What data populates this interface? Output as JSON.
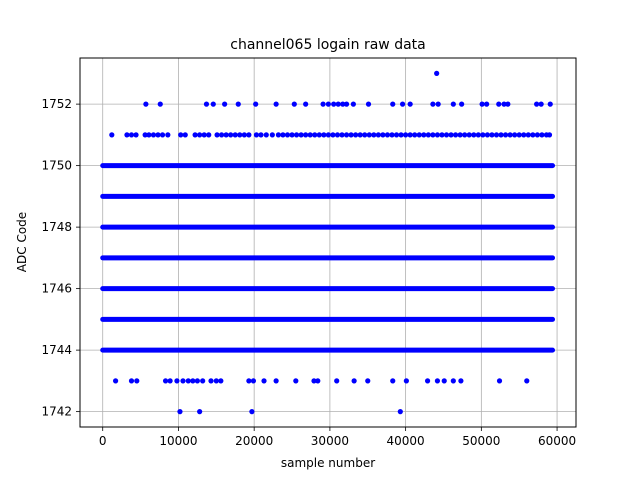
{
  "chart_data": {
    "type": "scatter",
    "title": "channel065 logain raw data",
    "xlabel": "sample number",
    "ylabel": "ADC Code",
    "xlim": [
      -3000,
      62500
    ],
    "ylim": [
      1741.5,
      1753.5
    ],
    "xticks": [
      0,
      10000,
      20000,
      30000,
      40000,
      50000,
      60000
    ],
    "yticks": [
      1742,
      1744,
      1746,
      1748,
      1750,
      1752
    ],
    "grid": true,
    "marker_color": "#0000ff",
    "dense_levels": {
      "y": [
        1744,
        1745,
        1746,
        1747,
        1748,
        1749,
        1750
      ],
      "x_range": [
        0,
        59400
      ]
    },
    "sparse_points": [
      {
        "x": 1200,
        "y": 1751
      },
      {
        "x": 3200,
        "y": 1751
      },
      {
        "x": 3800,
        "y": 1751
      },
      {
        "x": 4400,
        "y": 1751
      },
      {
        "x": 5600,
        "y": 1751
      },
      {
        "x": 6100,
        "y": 1751
      },
      {
        "x": 6700,
        "y": 1751
      },
      {
        "x": 7300,
        "y": 1751
      },
      {
        "x": 7900,
        "y": 1751
      },
      {
        "x": 8600,
        "y": 1751
      },
      {
        "x": 10300,
        "y": 1751
      },
      {
        "x": 10900,
        "y": 1751
      },
      {
        "x": 12200,
        "y": 1751
      },
      {
        "x": 12800,
        "y": 1751
      },
      {
        "x": 13400,
        "y": 1751
      },
      {
        "x": 14000,
        "y": 1751
      },
      {
        "x": 15100,
        "y": 1751
      },
      {
        "x": 15700,
        "y": 1751
      },
      {
        "x": 16300,
        "y": 1751
      },
      {
        "x": 16900,
        "y": 1751
      },
      {
        "x": 17500,
        "y": 1751
      },
      {
        "x": 18100,
        "y": 1751
      },
      {
        "x": 18700,
        "y": 1751
      },
      {
        "x": 19300,
        "y": 1751
      },
      {
        "x": 20300,
        "y": 1751
      },
      {
        "x": 20900,
        "y": 1751
      },
      {
        "x": 21600,
        "y": 1751
      },
      {
        "x": 22400,
        "y": 1751
      },
      {
        "x": 23200,
        "y": 1751
      },
      {
        "x": 23800,
        "y": 1751
      },
      {
        "x": 24400,
        "y": 1751
      },
      {
        "x": 25000,
        "y": 1751
      },
      {
        "x": 25600,
        "y": 1751
      },
      {
        "x": 26200,
        "y": 1751
      },
      {
        "x": 26800,
        "y": 1751
      },
      {
        "x": 27400,
        "y": 1751
      },
      {
        "x": 28000,
        "y": 1751
      },
      {
        "x": 28600,
        "y": 1751
      },
      {
        "x": 29200,
        "y": 1751
      },
      {
        "x": 29800,
        "y": 1751
      },
      {
        "x": 30400,
        "y": 1751
      },
      {
        "x": 31000,
        "y": 1751
      },
      {
        "x": 31600,
        "y": 1751
      },
      {
        "x": 32200,
        "y": 1751
      },
      {
        "x": 32800,
        "y": 1751
      },
      {
        "x": 33400,
        "y": 1751
      },
      {
        "x": 34000,
        "y": 1751
      },
      {
        "x": 34600,
        "y": 1751
      },
      {
        "x": 35200,
        "y": 1751
      },
      {
        "x": 35800,
        "y": 1751
      },
      {
        "x": 36400,
        "y": 1751
      },
      {
        "x": 37000,
        "y": 1751
      },
      {
        "x": 37600,
        "y": 1751
      },
      {
        "x": 38200,
        "y": 1751
      },
      {
        "x": 38800,
        "y": 1751
      },
      {
        "x": 39400,
        "y": 1751
      },
      {
        "x": 40000,
        "y": 1751
      },
      {
        "x": 40600,
        "y": 1751
      },
      {
        "x": 41200,
        "y": 1751
      },
      {
        "x": 41800,
        "y": 1751
      },
      {
        "x": 42400,
        "y": 1751
      },
      {
        "x": 43000,
        "y": 1751
      },
      {
        "x": 43600,
        "y": 1751
      },
      {
        "x": 44200,
        "y": 1751
      },
      {
        "x": 44800,
        "y": 1751
      },
      {
        "x": 45400,
        "y": 1751
      },
      {
        "x": 46000,
        "y": 1751
      },
      {
        "x": 46600,
        "y": 1751
      },
      {
        "x": 47200,
        "y": 1751
      },
      {
        "x": 47800,
        "y": 1751
      },
      {
        "x": 48400,
        "y": 1751
      },
      {
        "x": 49000,
        "y": 1751
      },
      {
        "x": 49600,
        "y": 1751
      },
      {
        "x": 50200,
        "y": 1751
      },
      {
        "x": 50800,
        "y": 1751
      },
      {
        "x": 51400,
        "y": 1751
      },
      {
        "x": 52000,
        "y": 1751
      },
      {
        "x": 52600,
        "y": 1751
      },
      {
        "x": 53200,
        "y": 1751
      },
      {
        "x": 53800,
        "y": 1751
      },
      {
        "x": 54400,
        "y": 1751
      },
      {
        "x": 55000,
        "y": 1751
      },
      {
        "x": 55600,
        "y": 1751
      },
      {
        "x": 56200,
        "y": 1751
      },
      {
        "x": 56800,
        "y": 1751
      },
      {
        "x": 57400,
        "y": 1751
      },
      {
        "x": 58000,
        "y": 1751
      },
      {
        "x": 58600,
        "y": 1751
      },
      {
        "x": 59000,
        "y": 1751
      },
      {
        "x": 5700,
        "y": 1752
      },
      {
        "x": 7600,
        "y": 1752
      },
      {
        "x": 13700,
        "y": 1752
      },
      {
        "x": 14600,
        "y": 1752
      },
      {
        "x": 16100,
        "y": 1752
      },
      {
        "x": 17900,
        "y": 1752
      },
      {
        "x": 20200,
        "y": 1752
      },
      {
        "x": 22900,
        "y": 1752
      },
      {
        "x": 25300,
        "y": 1752
      },
      {
        "x": 26800,
        "y": 1752
      },
      {
        "x": 29100,
        "y": 1752
      },
      {
        "x": 29800,
        "y": 1752
      },
      {
        "x": 30500,
        "y": 1752
      },
      {
        "x": 31100,
        "y": 1752
      },
      {
        "x": 31700,
        "y": 1752
      },
      {
        "x": 32200,
        "y": 1752
      },
      {
        "x": 33100,
        "y": 1752
      },
      {
        "x": 35100,
        "y": 1752
      },
      {
        "x": 38300,
        "y": 1752
      },
      {
        "x": 39600,
        "y": 1752
      },
      {
        "x": 40600,
        "y": 1752
      },
      {
        "x": 43600,
        "y": 1752
      },
      {
        "x": 44300,
        "y": 1752
      },
      {
        "x": 46300,
        "y": 1752
      },
      {
        "x": 47400,
        "y": 1752
      },
      {
        "x": 50100,
        "y": 1752
      },
      {
        "x": 50700,
        "y": 1752
      },
      {
        "x": 52300,
        "y": 1752
      },
      {
        "x": 53000,
        "y": 1752
      },
      {
        "x": 53500,
        "y": 1752
      },
      {
        "x": 57300,
        "y": 1752
      },
      {
        "x": 57900,
        "y": 1752
      },
      {
        "x": 59100,
        "y": 1752
      },
      {
        "x": 44100,
        "y": 1753
      },
      {
        "x": 1700,
        "y": 1743
      },
      {
        "x": 3800,
        "y": 1743
      },
      {
        "x": 4500,
        "y": 1743
      },
      {
        "x": 8300,
        "y": 1743
      },
      {
        "x": 8900,
        "y": 1743
      },
      {
        "x": 9800,
        "y": 1743
      },
      {
        "x": 10600,
        "y": 1743
      },
      {
        "x": 11300,
        "y": 1743
      },
      {
        "x": 11900,
        "y": 1743
      },
      {
        "x": 12500,
        "y": 1743
      },
      {
        "x": 13200,
        "y": 1743
      },
      {
        "x": 14300,
        "y": 1743
      },
      {
        "x": 15000,
        "y": 1743
      },
      {
        "x": 15600,
        "y": 1743
      },
      {
        "x": 19300,
        "y": 1743
      },
      {
        "x": 19900,
        "y": 1743
      },
      {
        "x": 21300,
        "y": 1743
      },
      {
        "x": 22900,
        "y": 1743
      },
      {
        "x": 25500,
        "y": 1743
      },
      {
        "x": 27900,
        "y": 1743
      },
      {
        "x": 28400,
        "y": 1743
      },
      {
        "x": 30900,
        "y": 1743
      },
      {
        "x": 33200,
        "y": 1743
      },
      {
        "x": 35000,
        "y": 1743
      },
      {
        "x": 38300,
        "y": 1743
      },
      {
        "x": 40100,
        "y": 1743
      },
      {
        "x": 42900,
        "y": 1743
      },
      {
        "x": 44200,
        "y": 1743
      },
      {
        "x": 45100,
        "y": 1743
      },
      {
        "x": 46300,
        "y": 1743
      },
      {
        "x": 47300,
        "y": 1743
      },
      {
        "x": 52400,
        "y": 1743
      },
      {
        "x": 56000,
        "y": 1743
      },
      {
        "x": 10200,
        "y": 1742
      },
      {
        "x": 12800,
        "y": 1742
      },
      {
        "x": 19700,
        "y": 1742
      },
      {
        "x": 39300,
        "y": 1742
      }
    ]
  }
}
